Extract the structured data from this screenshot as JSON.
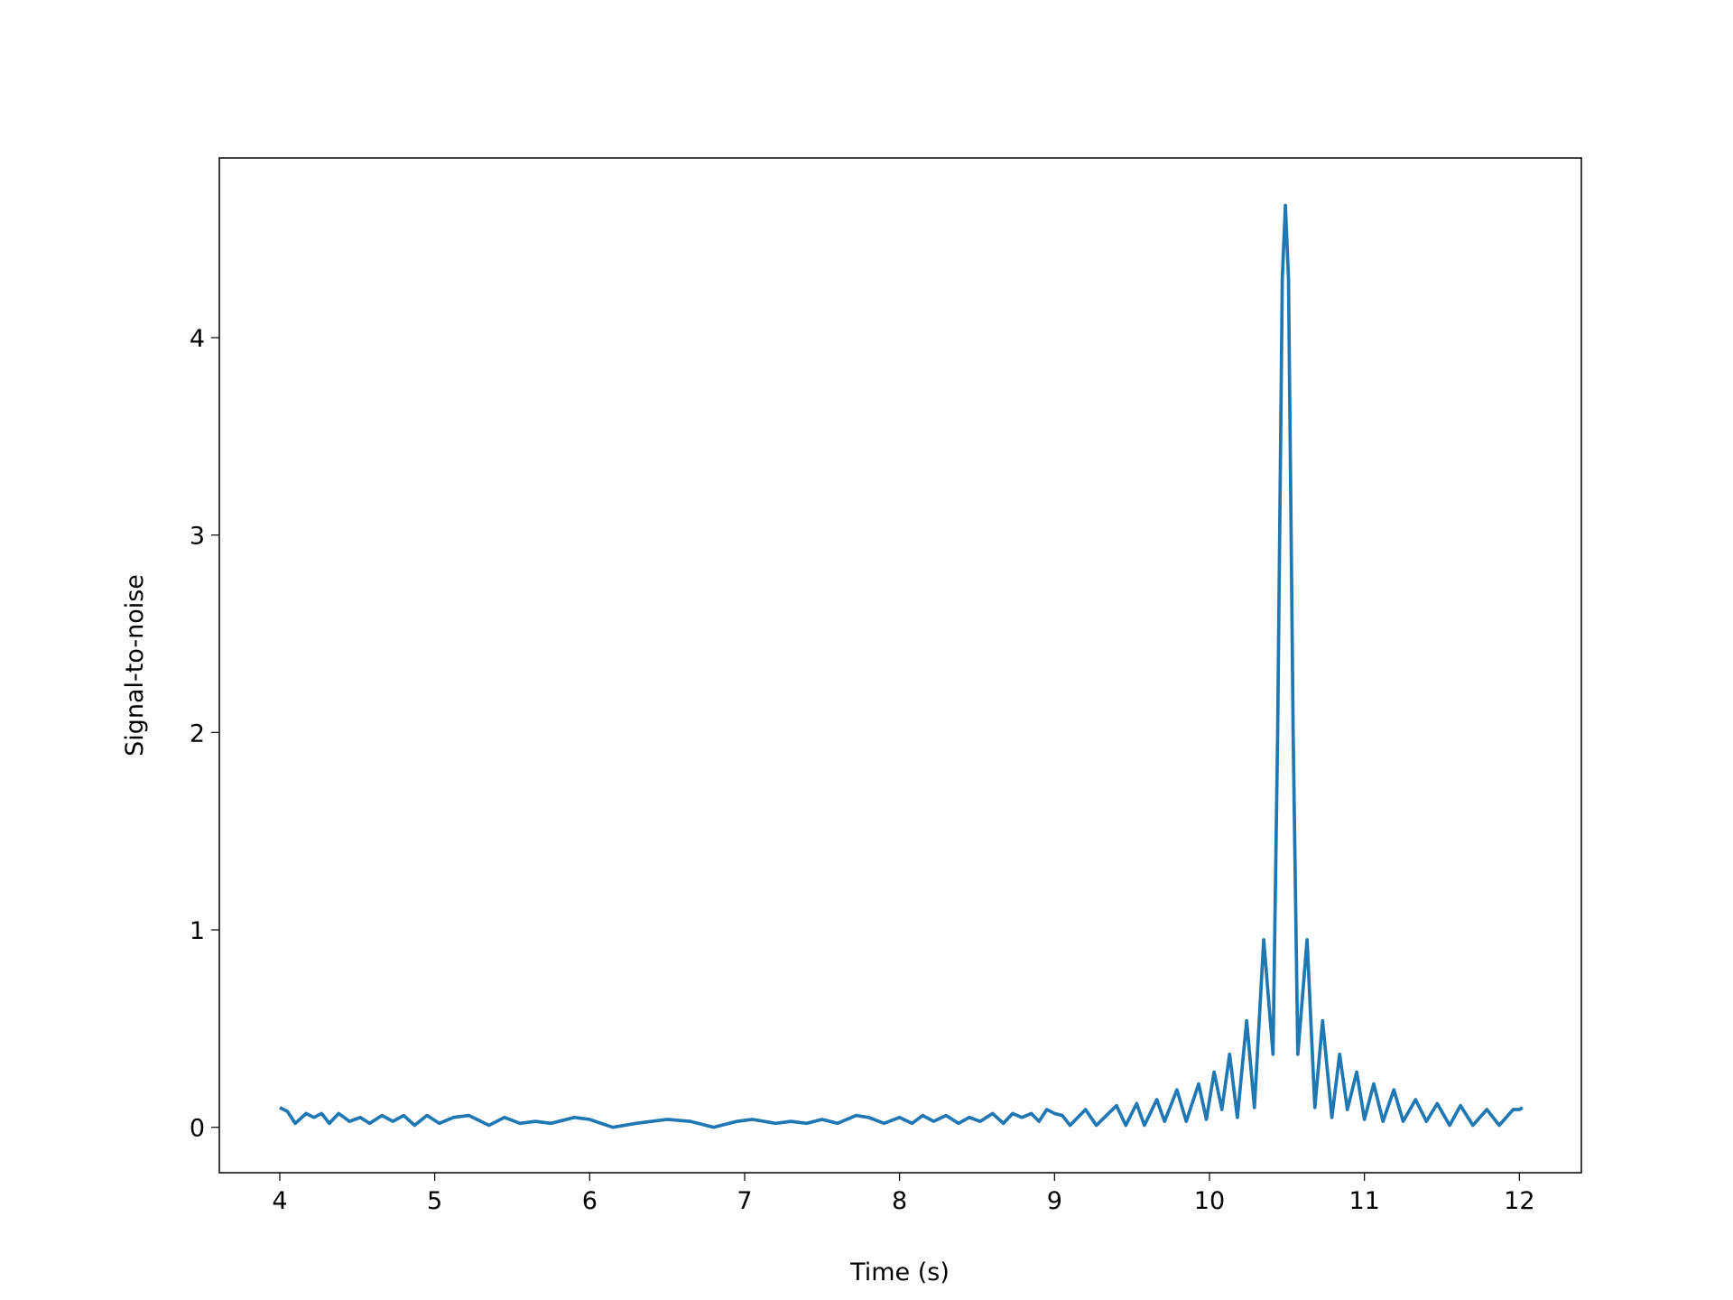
{
  "chart_data": {
    "type": "line",
    "x_label": "Time (s)",
    "y_label": "Signal-to-noise",
    "color": "#1f77b4",
    "x": [
      4.0,
      4.05,
      4.1,
      4.17,
      4.22,
      4.27,
      4.32,
      4.38,
      4.45,
      4.52,
      4.58,
      4.66,
      4.73,
      4.8,
      4.87,
      4.95,
      5.03,
      5.12,
      5.22,
      5.35,
      5.45,
      5.55,
      5.65,
      5.75,
      5.9,
      6.0,
      6.15,
      6.3,
      6.5,
      6.65,
      6.8,
      6.95,
      7.05,
      7.2,
      7.3,
      7.4,
      7.5,
      7.6,
      7.72,
      7.8,
      7.9,
      8.0,
      8.08,
      8.15,
      8.22,
      8.3,
      8.38,
      8.45,
      8.52,
      8.6,
      8.67,
      8.73,
      8.79,
      8.85,
      8.9,
      8.95,
      9.0,
      9.05,
      9.1,
      9.2,
      9.27,
      9.4,
      9.46,
      9.53,
      9.58,
      9.66,
      9.71,
      9.79,
      9.85,
      9.93,
      9.98,
      10.03,
      10.08,
      10.13,
      10.18,
      10.24,
      10.29,
      10.35,
      10.41,
      10.44,
      10.47,
      10.49,
      10.51,
      10.54,
      10.57,
      10.63,
      10.68,
      10.73,
      10.79,
      10.84,
      10.89,
      10.95,
      11.0,
      11.06,
      11.12,
      11.19,
      11.25,
      11.33,
      11.4,
      11.47,
      11.55,
      11.62,
      11.7,
      11.79,
      11.87,
      11.96,
      12.0,
      12.02
    ],
    "values": [
      0.1,
      0.08,
      0.02,
      0.07,
      0.05,
      0.07,
      0.02,
      0.07,
      0.03,
      0.05,
      0.02,
      0.06,
      0.03,
      0.06,
      0.01,
      0.06,
      0.02,
      0.05,
      0.06,
      0.01,
      0.05,
      0.02,
      0.03,
      0.02,
      0.05,
      0.04,
      0.0,
      0.02,
      0.04,
      0.03,
      0.0,
      0.03,
      0.04,
      0.02,
      0.03,
      0.02,
      0.04,
      0.02,
      0.06,
      0.05,
      0.02,
      0.05,
      0.02,
      0.06,
      0.03,
      0.06,
      0.02,
      0.05,
      0.03,
      0.07,
      0.02,
      0.07,
      0.05,
      0.07,
      0.03,
      0.09,
      0.07,
      0.06,
      0.01,
      0.09,
      0.01,
      0.11,
      0.01,
      0.12,
      0.01,
      0.14,
      0.03,
      0.19,
      0.03,
      0.22,
      0.04,
      0.28,
      0.09,
      0.37,
      0.05,
      0.54,
      0.1,
      0.95,
      0.37,
      2.0,
      4.3,
      4.67,
      4.3,
      2.0,
      0.37,
      0.95,
      0.1,
      0.54,
      0.05,
      0.37,
      0.09,
      0.28,
      0.04,
      0.22,
      0.03,
      0.19,
      0.03,
      0.14,
      0.03,
      0.12,
      0.01,
      0.11,
      0.01,
      0.09,
      0.01,
      0.09,
      0.09,
      0.1
    ],
    "xlim": [
      3.61,
      12.4
    ],
    "ylim": [
      -0.23,
      4.91
    ],
    "xticks": [
      4,
      5,
      6,
      7,
      8,
      9,
      10,
      11,
      12
    ],
    "yticks": [
      0,
      1,
      2,
      3,
      4
    ]
  }
}
